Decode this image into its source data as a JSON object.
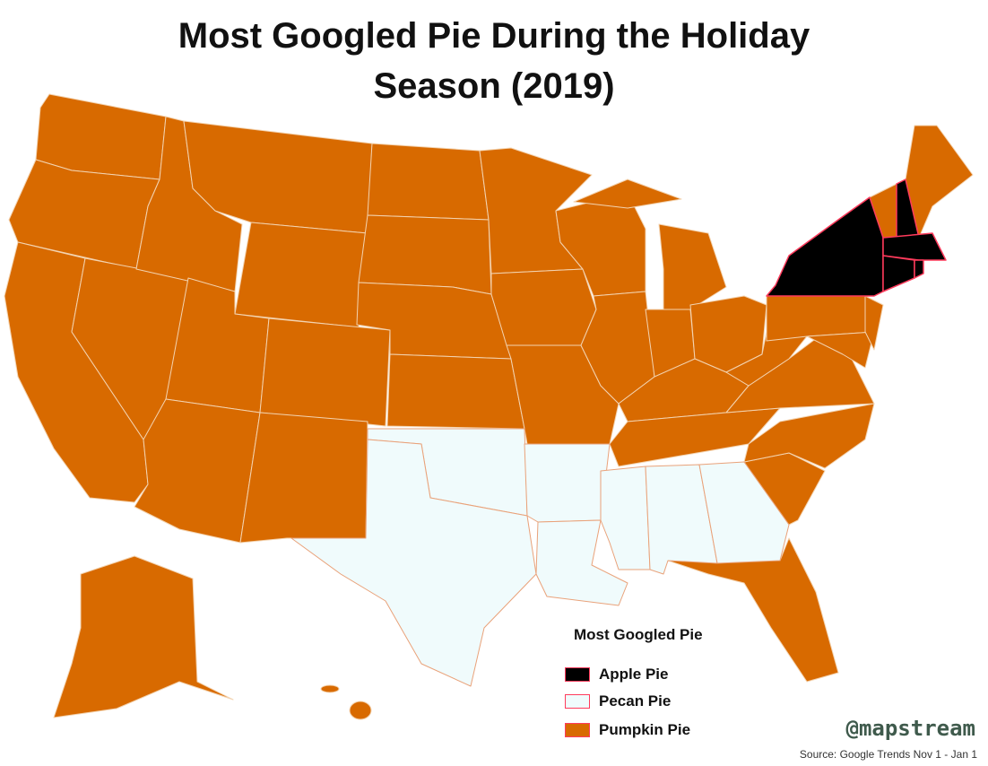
{
  "header": {
    "title": "Most Googled Pie During the Holiday Season (2019)"
  },
  "legend": {
    "title": "Most Googled Pie",
    "items": [
      {
        "label": "Apple Pie",
        "color": "#000000"
      },
      {
        "label": "Pecan Pie",
        "color": "#f0fbfc"
      },
      {
        "label": "Pumpkin Pie",
        "color": "#d86a00"
      }
    ]
  },
  "footer": {
    "watermark": "@mapstream",
    "source": "Source: Google Trends Nov 1 - Jan 1"
  }
}
